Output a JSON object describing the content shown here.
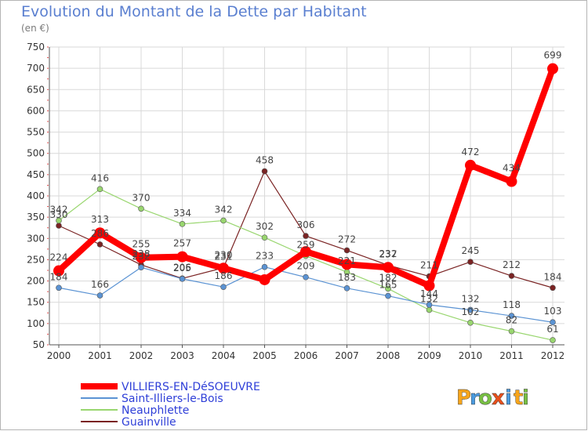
{
  "page": {
    "title": "Evolution du Montant de la Dette par Habitant",
    "subtitle": "(en €)"
  },
  "brand": {
    "letters": [
      "P",
      "r",
      "o",
      "x",
      "i",
      "t",
      "i"
    ],
    "colors": [
      "#f7a51b",
      "#4a9be0",
      "#78c043",
      "#e8501c",
      "#4a9be0",
      "#f7a51b",
      "#78c043"
    ]
  },
  "chart_data": {
    "type": "line",
    "title": "Evolution du Montant de la Dette par Habitant",
    "ylabel": "(en €)",
    "xlabel": "",
    "x": [
      "2000",
      "2001",
      "2002",
      "2003",
      "2004",
      "2005",
      "2006",
      "2007",
      "2008",
      "2009",
      "2010",
      "2011",
      "2012"
    ],
    "ylim": [
      50,
      750
    ],
    "yticks": [
      "50",
      "100",
      "150",
      "200",
      "250",
      "300",
      "350",
      "400",
      "450",
      "500",
      "550",
      "600",
      "650",
      "700",
      "750"
    ],
    "grid": true,
    "legend_position": "bottom-left",
    "series": [
      {
        "name": "VILLIERS-EN-DéSOEUVRE",
        "color": "#ff0000",
        "values": [
          224,
          313,
          255,
          257,
          230,
          203,
          269,
          239,
          232,
          189,
          472,
          434,
          699
        ],
        "labels": [
          "224",
          "313",
          "255",
          "257",
          "230",
          "",
          "",
          "",
          "232",
          "",
          "472",
          "434",
          "699"
        ]
      },
      {
        "name": "Saint-Illiers-le-Bois",
        "color": "#5b93d3",
        "values": [
          184,
          166,
          232,
          205,
          186,
          233,
          209,
          183,
          165,
          144,
          132,
          118,
          103
        ],
        "labels": [
          "184",
          "166",
          "232",
          "205",
          "186",
          "233",
          "209",
          "183",
          "165",
          "144",
          "132",
          "118",
          "103"
        ]
      },
      {
        "name": "Neauphlette",
        "color": "#99d66f",
        "values": [
          342,
          416,
          370,
          334,
          342,
          302,
          259,
          221,
          182,
          132,
          102,
          82,
          61
        ],
        "labels": [
          "342",
          "416",
          "370",
          "334",
          "342",
          "302",
          "259",
          "221",
          "182",
          "132",
          "102",
          "82",
          "61"
        ]
      },
      {
        "name": "Guainville",
        "color": "#7a2323",
        "values": [
          330,
          286,
          238,
          206,
          231,
          458,
          306,
          272,
          237,
          211,
          245,
          212,
          184
        ],
        "labels": [
          "330",
          "286",
          "238",
          "206",
          "231",
          "458",
          "306",
          "272",
          "237",
          "211",
          "245",
          "212",
          "184"
        ]
      }
    ]
  }
}
